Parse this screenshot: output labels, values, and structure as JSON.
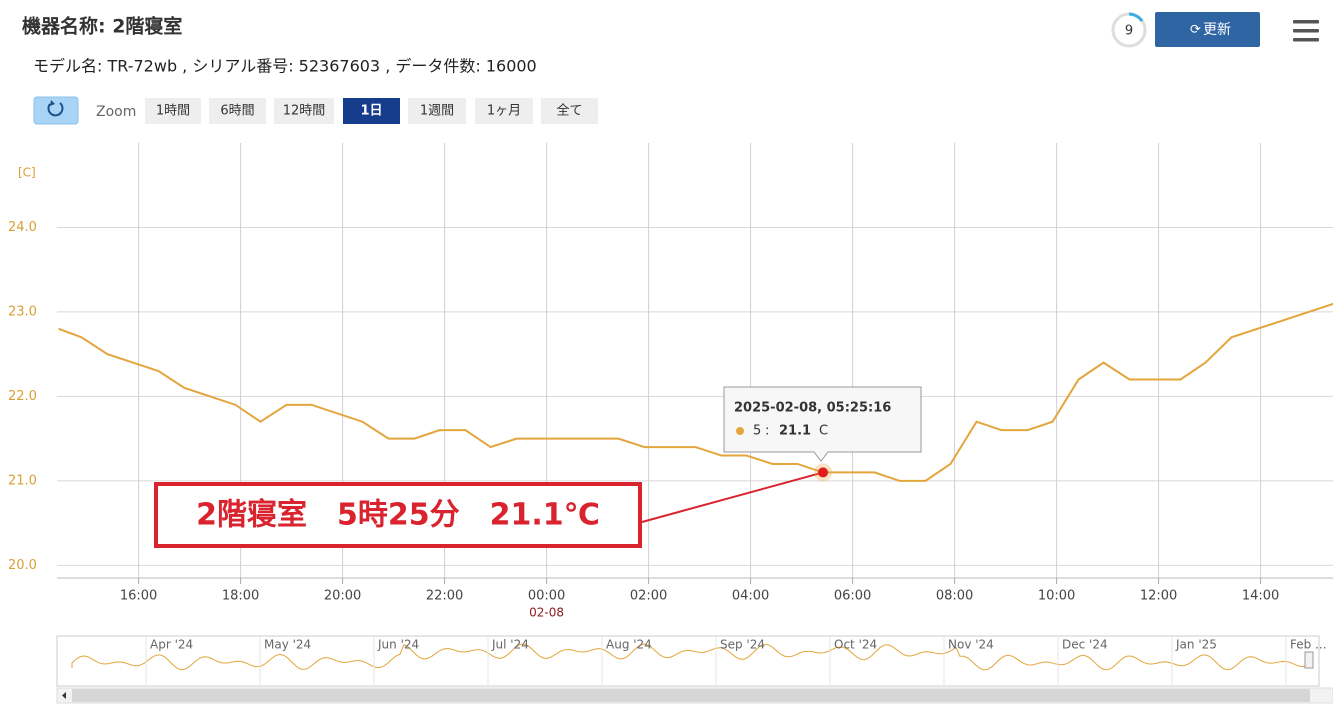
{
  "header": {
    "title": "機器名称: 2階寝室",
    "subtitle": "モデル名: TR-72wb , シリアル番号: 52367603 , データ件数: 16000",
    "countdown": "9",
    "refresh": "更新"
  },
  "zoom": {
    "label": "Zoom",
    "buttons": [
      {
        "label": "1時間",
        "active": false
      },
      {
        "label": "6時間",
        "active": false
      },
      {
        "label": "12時間",
        "active": false
      },
      {
        "label": "1日",
        "active": true
      },
      {
        "label": "1週間",
        "active": false
      },
      {
        "label": "1ヶ月",
        "active": false
      },
      {
        "label": "全て",
        "active": false
      }
    ]
  },
  "chart_data": {
    "type": "line",
    "y_unit_label": "[C]",
    "xlim": [
      -9.6,
      15.42
    ],
    "xticks": [
      {
        "value": -8,
        "label": "16:00"
      },
      {
        "value": -6,
        "label": "18:00"
      },
      {
        "value": -4,
        "label": "20:00"
      },
      {
        "value": -2,
        "label": "22:00"
      },
      {
        "value": 0,
        "label": "00:00"
      },
      {
        "value": 2,
        "label": "02:00"
      },
      {
        "value": 4,
        "label": "04:00"
      },
      {
        "value": 6,
        "label": "06:00"
      },
      {
        "value": 8,
        "label": "08:00"
      },
      {
        "value": 10,
        "label": "10:00"
      },
      {
        "value": 12,
        "label": "12:00"
      },
      {
        "value": 14,
        "label": "14:00"
      }
    ],
    "x_date_labels": [
      {
        "value": 0,
        "label": "02-08"
      }
    ],
    "ylim": [
      19.85,
      25.0
    ],
    "yticks": [
      {
        "value": 20,
        "label": "20.0"
      },
      {
        "value": 21,
        "label": "21.0"
      },
      {
        "value": 22,
        "label": "22.0"
      },
      {
        "value": 23,
        "label": "23.0"
      },
      {
        "value": 24,
        "label": "24.0"
      }
    ],
    "grid": true,
    "series": [
      {
        "name": "5",
        "color": "#e3a53c",
        "x": [
          -9.57,
          -9.12,
          -8.61,
          -7.61,
          -7.1,
          -6.1,
          -5.61,
          -5.1,
          -4.61,
          -3.61,
          -3.1,
          -2.59,
          -2.1,
          -1.59,
          -1.1,
          -0.59,
          1.41,
          1.92,
          2.92,
          3.43,
          3.92,
          4.43,
          4.92,
          5.42,
          6.43,
          6.92,
          7.43,
          7.92,
          8.43,
          8.92,
          9.43,
          9.92,
          10.43,
          10.92,
          11.43,
          12.43,
          12.92,
          13.43,
          15.45
        ],
        "values": [
          22.8,
          22.7,
          22.5,
          22.3,
          22.1,
          21.9,
          21.7,
          21.9,
          21.9,
          21.7,
          21.5,
          21.5,
          21.6,
          21.6,
          21.4,
          21.5,
          21.5,
          21.4,
          21.4,
          21.3,
          21.3,
          21.2,
          21.2,
          21.1,
          21.1,
          21.0,
          21.0,
          21.2,
          21.7,
          21.6,
          21.6,
          21.7,
          22.2,
          22.4,
          22.2,
          22.2,
          22.4,
          22.7,
          23.1
        ]
      }
    ],
    "tooltip": {
      "title": "2025-02-08, 05:25:16",
      "unit": "C"
    },
    "annotation": "2階寝室　5時25分　21.1℃",
    "navigator": {
      "labels": [
        "Apr '24",
        "May '24",
        "Jun '24",
        "Jul '24",
        "Aug '24",
        "Sep '24",
        "Oct '24",
        "Nov '24",
        "Dec '24",
        "Jan '25",
        "Feb ..."
      ]
    }
  }
}
